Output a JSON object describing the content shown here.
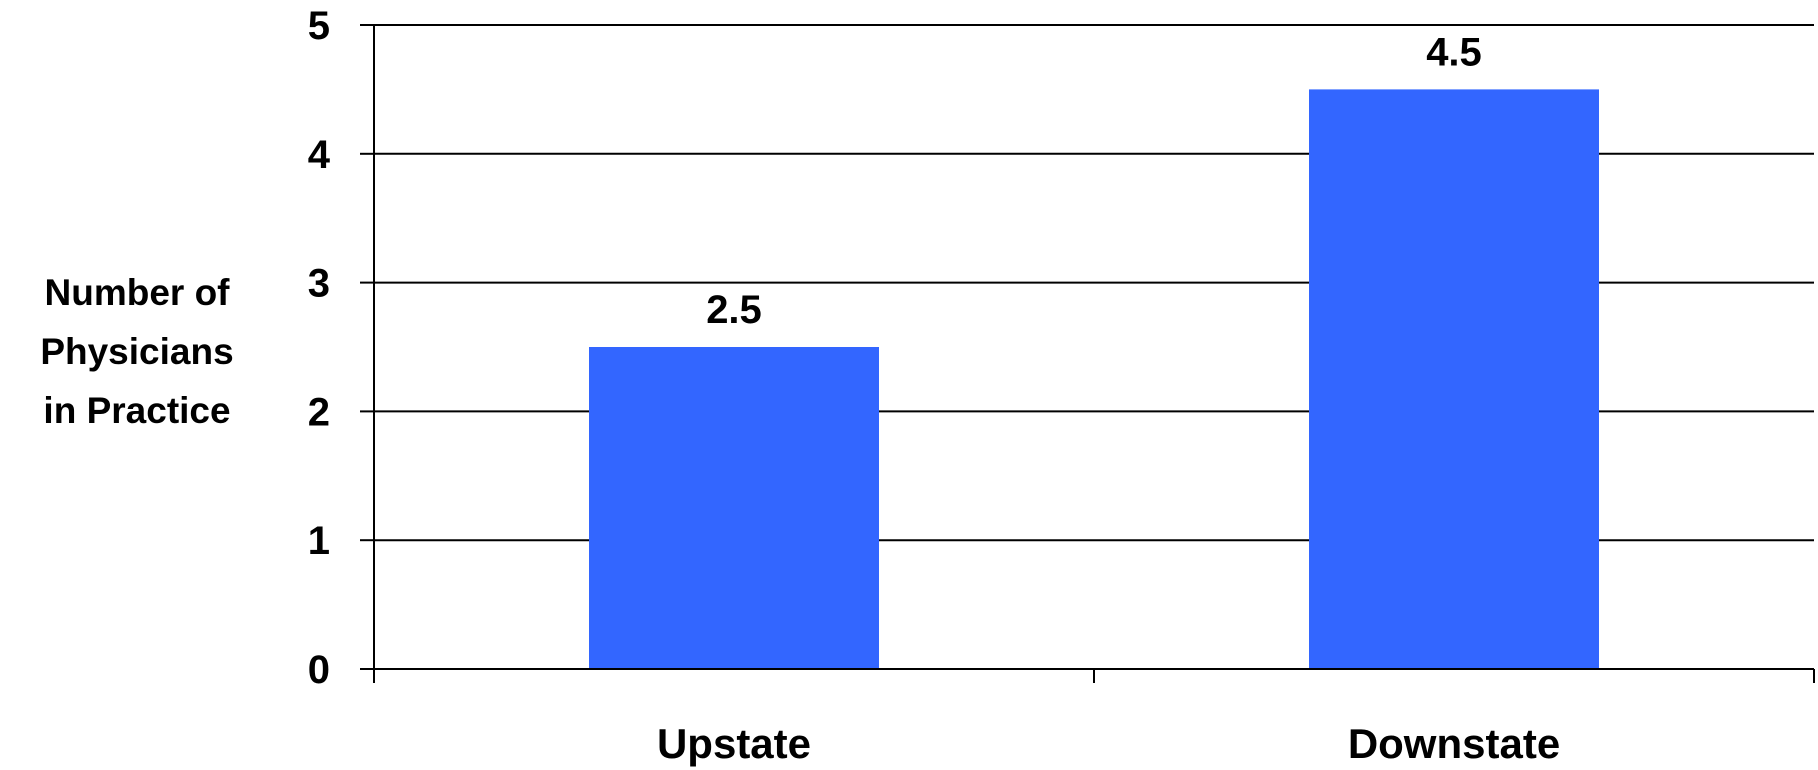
{
  "chart_data": {
    "type": "bar",
    "categories": [
      "Upstate",
      "Downstate"
    ],
    "values": [
      2.5,
      4.5
    ],
    "data_labels": [
      "2.5",
      "4.5"
    ],
    "title": "",
    "xlabel": "",
    "ylabel": "Number of Physicians in Practice",
    "ylabel_lines": [
      "Number of",
      "Physicians",
      "in Practice"
    ],
    "ylim": [
      0,
      5
    ],
    "yticks": [
      0,
      1,
      2,
      3,
      4,
      5
    ],
    "ytick_labels": [
      "0",
      "1",
      "2",
      "3",
      "4",
      "5"
    ],
    "grid": true,
    "legend": "none",
    "bar_color": "#3366FF",
    "axis_color": "#000000"
  }
}
